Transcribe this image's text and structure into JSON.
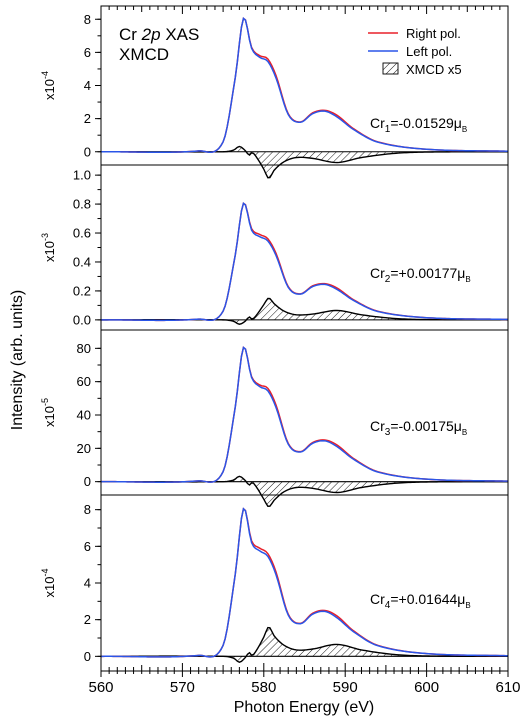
{
  "figure": {
    "ylabel": "Intensity (arb. units)",
    "xlabel": "Photon Energy (eV)",
    "xticks": [
      "560",
      "570",
      "580",
      "590",
      "600",
      "610"
    ],
    "header": {
      "line1_pre": "Cr ",
      "line1_italic": "2p",
      "line1_post": " XAS",
      "line2": "XMCD"
    },
    "legend": {
      "right": "Right pol.",
      "left": "Left pol.",
      "xmcd": "XMCD x5"
    },
    "colors": {
      "right": "#e8202a",
      "left": "#2a55e8",
      "xmcd": "#000000"
    }
  },
  "chart_data": [
    {
      "type": "line",
      "title": "",
      "xlabel": "Photon Energy (eV)",
      "ylabel": "Intensity (arb. units)",
      "xlim": [
        560,
        610
      ],
      "ylim": [
        -0.8,
        8.8
      ],
      "yticks": [
        "0",
        "2",
        "4",
        "6",
        "8"
      ],
      "scale_label": {
        "base": "x10",
        "exp": "-4"
      },
      "moment": {
        "sub": "1",
        "value": "=-0.01529μ",
        "unit_sub": "B"
      },
      "xmcd_sign": -1,
      "series": [
        {
          "name": "Right pol.",
          "x": [
            560,
            572,
            575,
            576.5,
            577.5,
            578.5,
            579.5,
            580.5,
            581.5,
            583,
            584.5,
            586,
            587.5,
            589,
            591,
            594,
            600,
            610
          ],
          "values": [
            0,
            0.05,
            0.6,
            4.5,
            8.05,
            6.3,
            5.8,
            5.6,
            4.6,
            2.3,
            1.8,
            2.35,
            2.5,
            2.2,
            1.4,
            0.6,
            0.15,
            0.03
          ]
        },
        {
          "name": "Left pol.",
          "x": [
            560,
            572,
            575,
            576.5,
            577.5,
            578.5,
            579.5,
            580.5,
            581.5,
            583,
            584.5,
            586,
            587.5,
            589,
            591,
            594,
            600,
            610
          ],
          "values": [
            0,
            0.05,
            0.6,
            4.5,
            8.05,
            6.25,
            5.7,
            5.45,
            4.45,
            2.25,
            1.78,
            2.3,
            2.45,
            2.1,
            1.35,
            0.58,
            0.15,
            0.03
          ]
        },
        {
          "name": "XMCD x5",
          "x": [
            560,
            575,
            576.3,
            577,
            577.7,
            578.2,
            578.6,
            579.2,
            580,
            580.6,
            581.3,
            582.5,
            584,
            586,
            589,
            592,
            596,
            600,
            610
          ],
          "values": [
            0,
            0,
            0.1,
            0.32,
            0.08,
            -0.2,
            -0.05,
            -0.4,
            -1.05,
            -1.6,
            -1.1,
            -0.6,
            -0.35,
            -0.4,
            -0.65,
            -0.35,
            -0.1,
            -0.02,
            0
          ]
        }
      ]
    },
    {
      "type": "line",
      "title": "",
      "xlabel": "Photon Energy (eV)",
      "ylabel": "Intensity (arb. units)",
      "xlim": [
        560,
        610
      ],
      "ylim": [
        -0.07,
        1.07
      ],
      "yticks": [
        "0.0",
        "0.2",
        "0.4",
        "0.6",
        "0.8",
        "1.0"
      ],
      "scale_label": {
        "base": "x10",
        "exp": "-3"
      },
      "moment": {
        "sub": "2",
        "value": "=+0.00177μ",
        "unit_sub": "B"
      },
      "xmcd_sign": 1,
      "series": [
        {
          "name": "Right pol.",
          "x": [
            560,
            572,
            575,
            576.5,
            577.5,
            578.5,
            579.5,
            580.5,
            581.5,
            583,
            584.5,
            586,
            587.5,
            589,
            591,
            594,
            600,
            610
          ],
          "values": [
            0,
            0.005,
            0.06,
            0.45,
            0.805,
            0.63,
            0.59,
            0.56,
            0.46,
            0.23,
            0.18,
            0.235,
            0.25,
            0.22,
            0.14,
            0.06,
            0.015,
            0.003
          ]
        },
        {
          "name": "Left pol.",
          "x": [
            560,
            572,
            575,
            576.5,
            577.5,
            578.5,
            579.5,
            580.5,
            581.5,
            583,
            584.5,
            586,
            587.5,
            589,
            591,
            594,
            600,
            610
          ],
          "values": [
            0,
            0.005,
            0.06,
            0.45,
            0.805,
            0.62,
            0.575,
            0.545,
            0.445,
            0.225,
            0.178,
            0.23,
            0.245,
            0.21,
            0.135,
            0.058,
            0.015,
            0.003
          ]
        },
        {
          "name": "XMCD x5",
          "x": [
            560,
            575,
            576.3,
            577,
            577.7,
            578.2,
            578.6,
            579.2,
            580,
            580.6,
            581.3,
            582.5,
            584,
            586,
            589,
            592,
            596,
            600,
            610
          ],
          "values": [
            0,
            0,
            -0.01,
            -0.03,
            -0.01,
            0.02,
            0.005,
            0.04,
            0.105,
            0.15,
            0.11,
            0.06,
            0.035,
            0.04,
            0.065,
            0.035,
            0.01,
            0.002,
            0
          ]
        }
      ]
    },
    {
      "type": "line",
      "title": "",
      "xlabel": "Photon Energy (eV)",
      "ylabel": "Intensity (arb. units)",
      "xlim": [
        560,
        610
      ],
      "ylim": [
        -8,
        91
      ],
      "yticks": [
        "0",
        "20",
        "40",
        "60",
        "80"
      ],
      "scale_label": {
        "base": "x10",
        "exp": "-5"
      },
      "moment": {
        "sub": "3",
        "value": "=-0.00175μ",
        "unit_sub": "B"
      },
      "xmcd_sign": -1,
      "series": [
        {
          "name": "Right pol.",
          "x": [
            560,
            572,
            575,
            576.5,
            577.5,
            578.5,
            579.5,
            580.5,
            581.5,
            583,
            584.5,
            586,
            587.5,
            589,
            591,
            594,
            600,
            610
          ],
          "values": [
            0,
            0.5,
            6,
            45,
            80.5,
            63,
            58,
            56,
            46,
            23,
            18,
            23.5,
            25,
            22,
            14,
            6,
            1.5,
            0.3
          ]
        },
        {
          "name": "Left pol.",
          "x": [
            560,
            572,
            575,
            576.5,
            577.5,
            578.5,
            579.5,
            580.5,
            581.5,
            583,
            584.5,
            586,
            587.5,
            589,
            591,
            594,
            600,
            610
          ],
          "values": [
            0,
            0.5,
            6,
            45,
            80.5,
            62.5,
            57,
            54.5,
            44.5,
            22.5,
            17.8,
            23,
            24.5,
            21,
            13.5,
            5.8,
            1.5,
            0.3
          ]
        },
        {
          "name": "XMCD x5",
          "x": [
            560,
            575,
            576.3,
            577,
            577.7,
            578.2,
            578.6,
            579.2,
            580,
            580.6,
            581.3,
            582.5,
            584,
            586,
            589,
            592,
            596,
            600,
            610
          ],
          "values": [
            0,
            0,
            1,
            3.2,
            0.8,
            -2,
            -0.5,
            -4,
            -10.5,
            -15,
            -11,
            -6,
            -3.5,
            -4,
            -6.5,
            -3.5,
            -1,
            -0.2,
            0
          ]
        }
      ]
    },
    {
      "type": "line",
      "title": "",
      "xlabel": "Photon Energy (eV)",
      "ylabel": "Intensity (arb. units)",
      "xlim": [
        560,
        610
      ],
      "ylim": [
        -0.8,
        8.8
      ],
      "yticks": [
        "0",
        "2",
        "4",
        "6",
        "8"
      ],
      "scale_label": {
        "base": "x10",
        "exp": "-4"
      },
      "moment": {
        "sub": "4",
        "value": "=+0.01644μ",
        "unit_sub": "B"
      },
      "xmcd_sign": 1,
      "series": [
        {
          "name": "Right pol.",
          "x": [
            560,
            572,
            575,
            576.5,
            577.5,
            578.5,
            579.5,
            580.5,
            581.5,
            583,
            584.5,
            586,
            587.5,
            589,
            591,
            594,
            600,
            610
          ],
          "values": [
            0,
            0.05,
            0.6,
            4.5,
            8.05,
            6.3,
            5.9,
            5.6,
            4.6,
            2.3,
            1.8,
            2.35,
            2.5,
            2.2,
            1.4,
            0.6,
            0.15,
            0.03
          ]
        },
        {
          "name": "Left pol.",
          "x": [
            560,
            572,
            575,
            576.5,
            577.5,
            578.5,
            579.5,
            580.5,
            581.5,
            583,
            584.5,
            586,
            587.5,
            589,
            591,
            594,
            600,
            610
          ],
          "values": [
            0,
            0.05,
            0.6,
            4.5,
            8.05,
            6.2,
            5.75,
            5.45,
            4.45,
            2.25,
            1.78,
            2.3,
            2.45,
            2.1,
            1.35,
            0.58,
            0.15,
            0.03
          ]
        },
        {
          "name": "XMCD x5",
          "x": [
            560,
            575,
            576.3,
            577,
            577.7,
            578.2,
            578.6,
            579.2,
            580,
            580.6,
            581.3,
            582.5,
            584,
            586,
            589,
            592,
            596,
            600,
            610
          ],
          "values": [
            0,
            0,
            -0.1,
            -0.32,
            -0.08,
            0.2,
            0.05,
            0.4,
            1.05,
            1.6,
            1.1,
            0.6,
            0.35,
            0.4,
            0.65,
            0.35,
            0.1,
            0.02,
            0
          ]
        }
      ]
    }
  ]
}
